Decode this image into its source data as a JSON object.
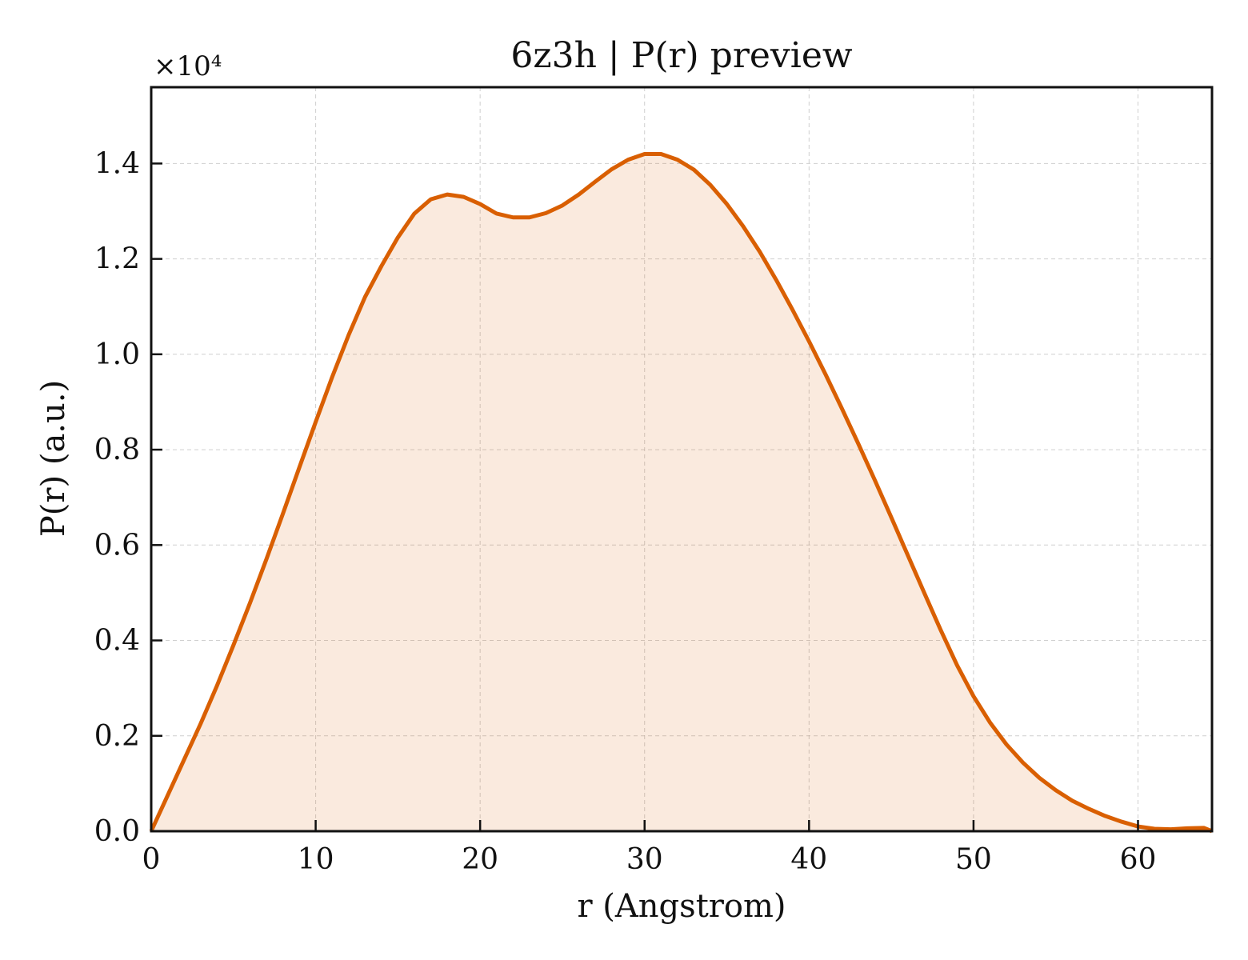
{
  "chart_data": {
    "type": "area",
    "title": "6z3h | P(r) preview",
    "xlabel": "r (Angstrom)",
    "ylabel": "P(r) (a.u.)",
    "y_multiplier_label": "×10⁴",
    "xlim": [
      0,
      64.5
    ],
    "ylim": [
      0,
      15600
    ],
    "x_ticks": [
      0,
      10,
      20,
      30,
      40,
      50,
      60
    ],
    "y_ticks": [
      0,
      2000,
      4000,
      6000,
      8000,
      10000,
      12000,
      14000
    ],
    "y_tick_labels": [
      "0.0",
      "0.2",
      "0.4",
      "0.6",
      "0.8",
      "1.0",
      "1.2",
      "1.4"
    ],
    "grid": true,
    "legend": "none",
    "series": [
      {
        "color": "#d95f02",
        "fill_color": "#d95f02",
        "x": [
          0,
          1,
          2,
          3,
          4,
          5,
          6,
          7,
          8,
          9,
          10,
          11,
          12,
          13,
          14,
          15,
          16,
          17,
          18,
          19,
          20,
          21,
          22,
          23,
          24,
          25,
          26,
          27,
          28,
          29,
          30,
          31,
          32,
          33,
          34,
          35,
          36,
          37,
          38,
          39,
          40,
          41,
          42,
          43,
          44,
          45,
          46,
          47,
          48,
          49,
          50,
          51,
          52,
          53,
          54,
          55,
          56,
          57,
          58,
          59,
          60,
          61,
          62,
          63,
          64,
          64.5
        ],
        "y": [
          0,
          750,
          1500,
          2250,
          3050,
          3900,
          4780,
          5700,
          6650,
          7620,
          8580,
          9520,
          10400,
          11200,
          11850,
          12450,
          12950,
          13250,
          13350,
          13300,
          13150,
          12950,
          12870,
          12870,
          12960,
          13120,
          13350,
          13620,
          13880,
          14080,
          14200,
          14200,
          14080,
          13870,
          13550,
          13150,
          12680,
          12150,
          11560,
          10930,
          10270,
          9580,
          8860,
          8120,
          7360,
          6580,
          5790,
          5000,
          4220,
          3480,
          2830,
          2280,
          1820,
          1440,
          1120,
          860,
          640,
          470,
          320,
          200,
          100,
          50,
          40,
          60,
          70,
          0
        ]
      }
    ]
  }
}
